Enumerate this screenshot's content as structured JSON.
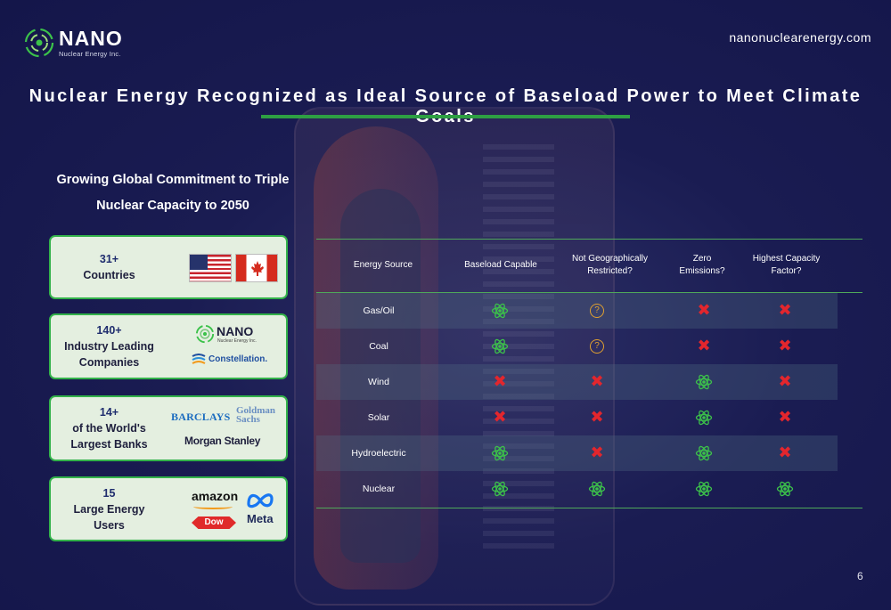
{
  "header": {
    "brand_name": "NANO",
    "brand_sub": "Nuclear Energy Inc.",
    "website": "nanonuclearenergy.com",
    "title": "Nuclear Energy Recognized as Ideal Source of Baseload Power to Meet Climate Goals"
  },
  "commitment": {
    "line1": "Growing Global Commitment to Triple",
    "line2": "Nuclear Capacity to 2050"
  },
  "cards": [
    {
      "count": "31+",
      "label": "Countries"
    },
    {
      "count": "140+",
      "label": "Industry Leading Companies"
    },
    {
      "count": "14+",
      "label": "of the World's Largest Banks"
    },
    {
      "count": "15",
      "label": "Large Energy Users"
    }
  ],
  "logos": {
    "nano": "NANO",
    "nano_sub": "Nuclear Energy Inc.",
    "constellation": "Constellation.",
    "barclays": "BARCLAYS",
    "goldman_1": "Goldman",
    "goldman_2": "Sachs",
    "morgan": "Morgan Stanley",
    "amazon": "amazon",
    "dow": "Dow",
    "meta": "Meta"
  },
  "table": {
    "headers": [
      "Energy Source",
      "Baseload Capable",
      "Not Geographically Restricted?",
      "Zero Emissions?",
      "Highest Capacity Factor?"
    ],
    "rows": [
      {
        "source": "Gas/Oil",
        "values": [
          "yes",
          "unknown",
          "no",
          "no"
        ]
      },
      {
        "source": "Coal",
        "values": [
          "yes",
          "unknown",
          "no",
          "no"
        ]
      },
      {
        "source": "Wind",
        "values": [
          "no",
          "no",
          "yes",
          "no"
        ]
      },
      {
        "source": "Solar",
        "values": [
          "no",
          "no",
          "yes",
          "no"
        ]
      },
      {
        "source": "Hydroelectric",
        "values": [
          "yes",
          "no",
          "yes",
          "no"
        ]
      },
      {
        "source": "Nuclear",
        "values": [
          "yes",
          "yes",
          "yes",
          "yes"
        ]
      }
    ]
  },
  "colors": {
    "accent_green": "#2ea043",
    "yes": "#3cc24a",
    "no": "#e3262d",
    "unknown": "#e0a030",
    "background": "#17184a"
  },
  "page_number": "6"
}
